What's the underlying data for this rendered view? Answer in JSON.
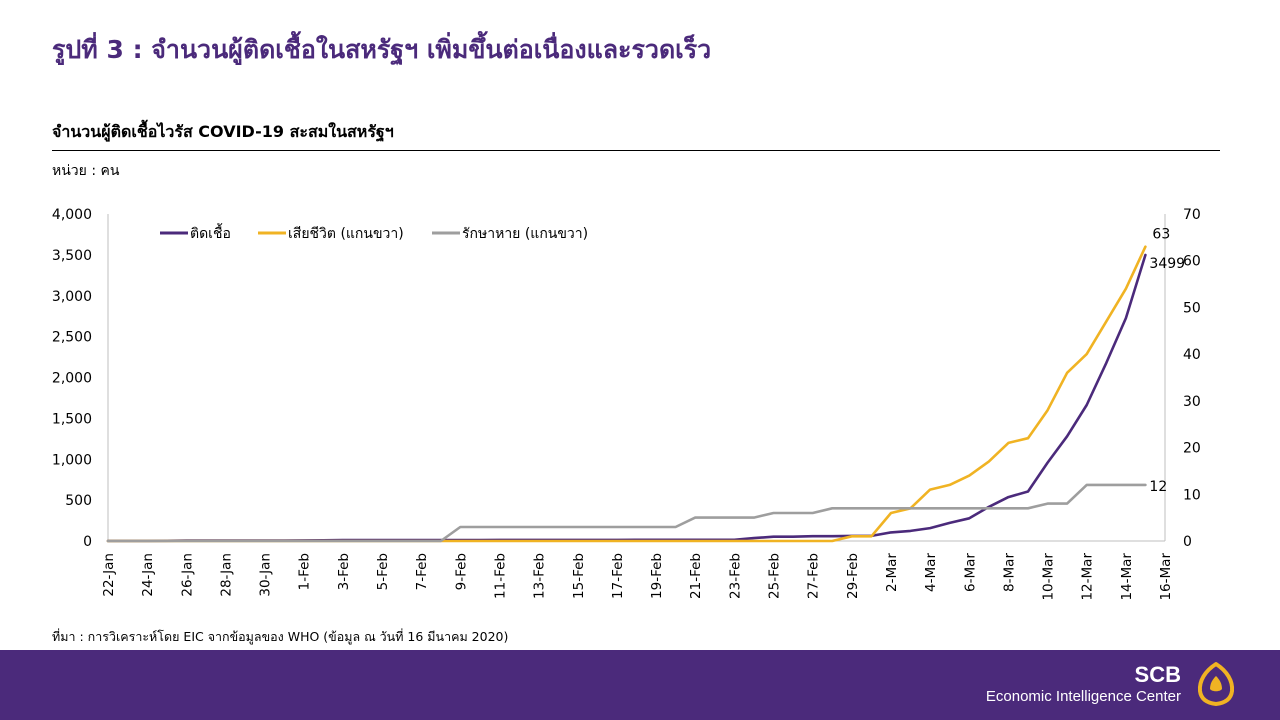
{
  "slide_title": "รูปที่ 3 : จำนวนผู้ติดเชื้อในสหรัฐฯ เพิ่มขึ้นต่อเนื่องและรวดเร็ว",
  "source": "ที่มา : การวิเคราะห์โดย EIC จากข้อมูลของ WHO (ข้อมูล ณ วันที่ 16 มีนาคม 2020)",
  "footer": {
    "brand": "SCB",
    "subtitle": "Economic Intelligence Center",
    "logo_icon": "scb-shell-logo-icon"
  },
  "colors": {
    "infected": "#4b2a7b",
    "deaths": "#f0b323",
    "recovered": "#9e9e9e",
    "footer": "#4b2a7b"
  },
  "chart_data": {
    "type": "line",
    "title": "จำนวนผู้ติดเชื้อไวรัส COVID-19 สะสมในสหรัฐฯ",
    "unit_label": "หน่วย : คน",
    "x": [
      "22-Jan",
      "23-Jan",
      "24-Jan",
      "25-Jan",
      "26-Jan",
      "27-Jan",
      "28-Jan",
      "29-Jan",
      "30-Jan",
      "31-Jan",
      "1-Feb",
      "2-Feb",
      "3-Feb",
      "4-Feb",
      "5-Feb",
      "6-Feb",
      "7-Feb",
      "8-Feb",
      "9-Feb",
      "10-Feb",
      "11-Feb",
      "12-Feb",
      "13-Feb",
      "14-Feb",
      "15-Feb",
      "16-Feb",
      "17-Feb",
      "18-Feb",
      "19-Feb",
      "20-Feb",
      "21-Feb",
      "22-Feb",
      "23-Feb",
      "24-Feb",
      "25-Feb",
      "26-Feb",
      "27-Feb",
      "28-Feb",
      "29-Feb",
      "1-Mar",
      "2-Mar",
      "3-Mar",
      "4-Mar",
      "5-Mar",
      "6-Mar",
      "7-Mar",
      "8-Mar",
      "9-Mar",
      "10-Mar",
      "11-Mar",
      "12-Mar",
      "13-Mar",
      "14-Mar",
      "15-Mar",
      "16-Mar"
    ],
    "x_tick_labels": [
      "22-Jan",
      "24-Jan",
      "26-Jan",
      "28-Jan",
      "30-Jan",
      "1-Feb",
      "3-Feb",
      "5-Feb",
      "7-Feb",
      "9-Feb",
      "11-Feb",
      "13-Feb",
      "15-Feb",
      "17-Feb",
      "19-Feb",
      "21-Feb",
      "23-Feb",
      "25-Feb",
      "27-Feb",
      "29-Feb",
      "2-Mar",
      "4-Mar",
      "6-Mar",
      "8-Mar",
      "10-Mar",
      "12-Mar",
      "14-Mar",
      "16-Mar"
    ],
    "y_left": {
      "ylim": [
        0,
        4000
      ],
      "ticks": [
        "0",
        "500",
        "1,000",
        "1,500",
        "2,000",
        "2,500",
        "3,000",
        "3,500",
        "4,000"
      ]
    },
    "y_right": {
      "ylim": [
        0,
        70
      ],
      "ticks": [
        "0",
        "10",
        "20",
        "30",
        "40",
        "50",
        "60",
        "70"
      ]
    },
    "legend_placement": "top-left",
    "grid": false,
    "series": [
      {
        "name": "ติดเชื้อ",
        "axis": "left",
        "color": "#4b2a7b",
        "values": [
          1,
          1,
          1,
          2,
          5,
          5,
          5,
          5,
          6,
          6,
          7,
          8,
          11,
          11,
          11,
          12,
          12,
          12,
          12,
          12,
          13,
          13,
          14,
          14,
          14,
          14,
          14,
          15,
          15,
          15,
          15,
          15,
          15,
          35,
          53,
          53,
          59,
          59,
          62,
          62,
          105,
          124,
          158,
          221,
          278,
          417,
          537,
          605,
          959,
          1281,
          1663,
          2179,
          2726,
          3499,
          null
        ],
        "end_label": "3499"
      },
      {
        "name": "เสียชีวิต (แกนขวา)",
        "axis": "right",
        "color": "#f0b323",
        "values": [
          0,
          0,
          0,
          0,
          0,
          0,
          0,
          0,
          0,
          0,
          0,
          0,
          0,
          0,
          0,
          0,
          0,
          0,
          0,
          0,
          0,
          0,
          0,
          0,
          0,
          0,
          0,
          0,
          0,
          0,
          0,
          0,
          0,
          0,
          0,
          0,
          0,
          0,
          1,
          1,
          6,
          7,
          11,
          12,
          14,
          17,
          21,
          22,
          28,
          36,
          40,
          47,
          54,
          63,
          null
        ],
        "end_label": "63"
      },
      {
        "name": "รักษาหาย (แกนขวา)",
        "axis": "right",
        "color": "#9e9e9e",
        "values": [
          0,
          0,
          0,
          0,
          0,
          0,
          0,
          0,
          0,
          0,
          0,
          0,
          0,
          0,
          0,
          0,
          0,
          0,
          3,
          3,
          3,
          3,
          3,
          3,
          3,
          3,
          3,
          3,
          3,
          3,
          5,
          5,
          5,
          5,
          6,
          6,
          6,
          7,
          7,
          7,
          7,
          7,
          7,
          7,
          7,
          7,
          7,
          7,
          8,
          8,
          12,
          12,
          12,
          12,
          null
        ],
        "end_label": "12"
      }
    ]
  }
}
